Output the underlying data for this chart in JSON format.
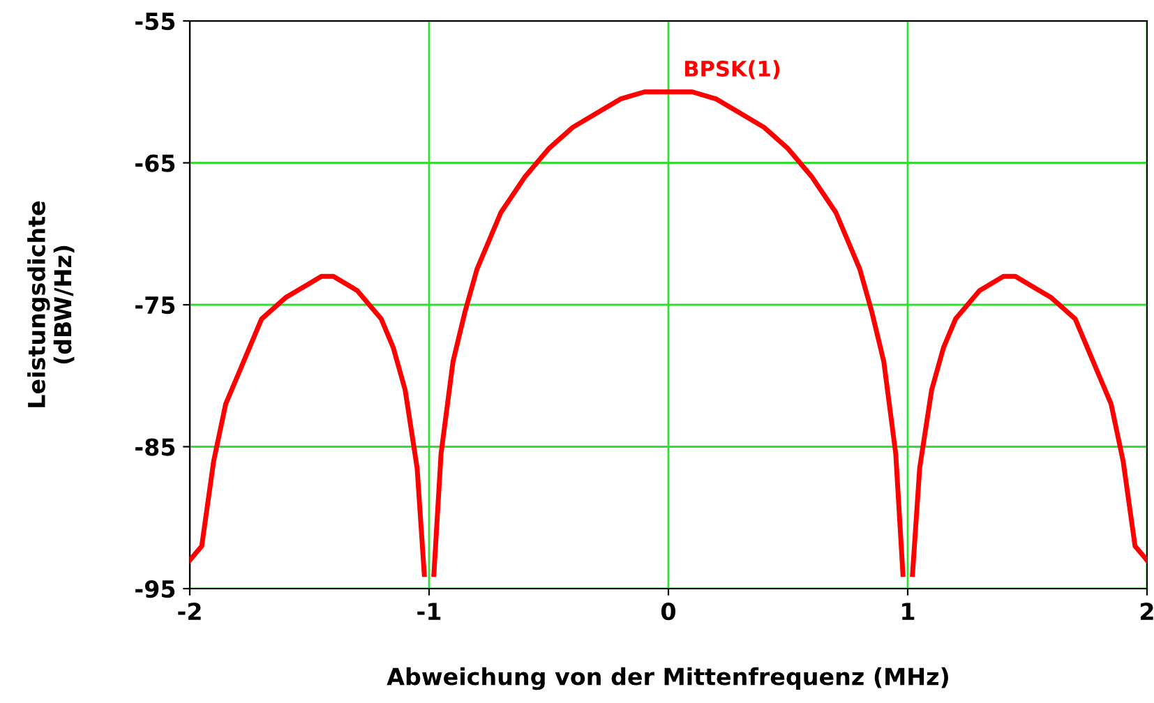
{
  "chart_data": {
    "type": "line",
    "xlabel": "Abweichung von der Mittenfrequenz (MHz)",
    "ylabel": "Leistungsdichte\n(dBW/Hz)",
    "x": [
      -2,
      -1.95,
      -1.9,
      -1.85,
      -1.8,
      -1.7,
      -1.6,
      -1.5,
      -1.45,
      -1.4,
      -1.3,
      -1.2,
      -1.15,
      -1.1,
      -1.05,
      -1.02,
      -1,
      -0.98,
      -0.95,
      -0.9,
      -0.85,
      -0.8,
      -0.7,
      -0.6,
      -0.5,
      -0.4,
      -0.3,
      -0.2,
      -0.1,
      0,
      0.1,
      0.2,
      0.3,
      0.4,
      0.5,
      0.6,
      0.7,
      0.8,
      0.85,
      0.9,
      0.95,
      0.98,
      1,
      1.02,
      1.05,
      1.1,
      1.15,
      1.2,
      1.3,
      1.4,
      1.45,
      1.5,
      1.6,
      1.7,
      1.8,
      1.85,
      1.9,
      1.95,
      2
    ],
    "series": [
      {
        "name": "BPSK(1)",
        "color": "#ff0000",
        "values": [
          -93,
          -92,
          -86,
          -82,
          -80,
          -76,
          -74.5,
          -73.5,
          -73,
          -73,
          -74,
          -76,
          -78,
          -81,
          -86.5,
          -94,
          null,
          -94,
          -85.5,
          -79,
          -75.5,
          -72.5,
          -68.5,
          -66,
          -64,
          -62.5,
          -61.5,
          -60.5,
          -60,
          -60,
          -60,
          -60.5,
          -61.5,
          -62.5,
          -64,
          -66,
          -68.5,
          -72.5,
          -75.5,
          -79,
          -85.5,
          -94,
          null,
          -94,
          -86.5,
          -81,
          -78,
          -76,
          -74,
          -73,
          -73,
          -73.5,
          -74.5,
          -76,
          -80,
          -82,
          -86,
          -92,
          -93
        ]
      }
    ],
    "xlim": [
      -2,
      2
    ],
    "xticks": [
      -2,
      -1,
      0,
      1,
      2
    ],
    "ylim": [
      -95,
      -55
    ],
    "yticks": [
      -95,
      -85,
      -75,
      -65,
      -55
    ],
    "grid": true,
    "legend": false,
    "marker": "none",
    "line_style": "solid"
  }
}
